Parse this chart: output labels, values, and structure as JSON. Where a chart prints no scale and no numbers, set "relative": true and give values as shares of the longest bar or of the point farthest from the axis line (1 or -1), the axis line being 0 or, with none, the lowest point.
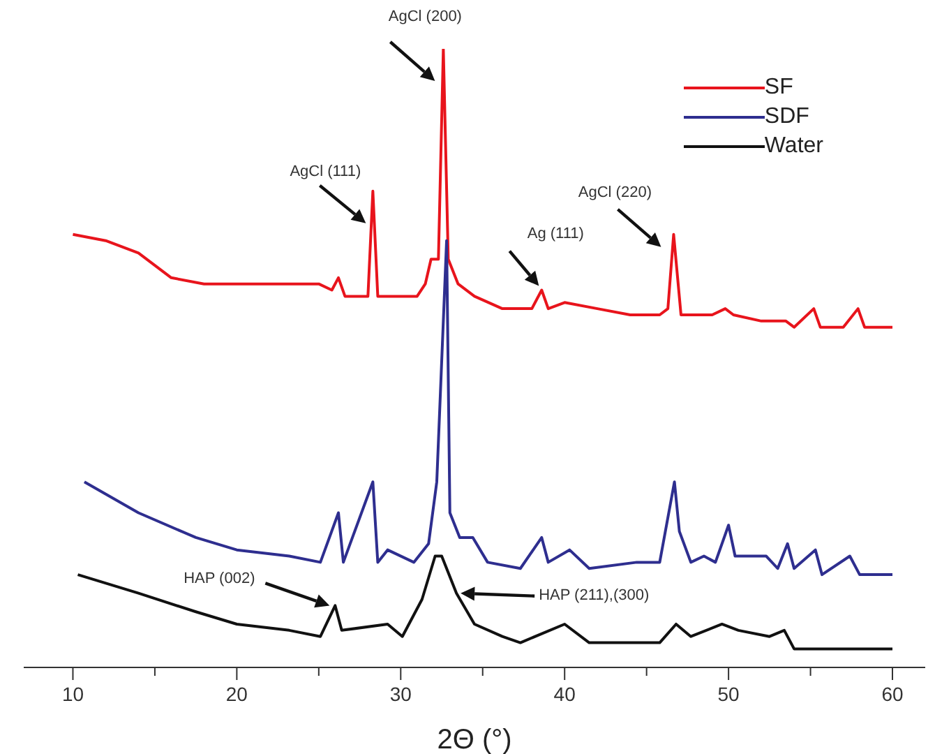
{
  "chart_data": {
    "type": "line",
    "relative": true,
    "xlabel": "2Θ (°)",
    "xlim": [
      7,
      62
    ],
    "xticks": [
      10,
      {
        "value": 15,
        "label": null
      },
      20,
      {
        "value": 25,
        "label": null
      },
      30,
      {
        "value": 35,
        "label": null
      },
      40,
      {
        "value": 45,
        "label": null
      },
      50,
      {
        "value": 55,
        "label": null
      },
      60
    ],
    "grid": false,
    "legend": "top right",
    "marker": "none",
    "line_style": "solid",
    "series": [
      {
        "name": "SF",
        "color": "#e8141c",
        "x": [
          10,
          12,
          14,
          16,
          18,
          20,
          23.2,
          25,
          25.8,
          26.2,
          26.6,
          27.5,
          28,
          28.3,
          28.6,
          30,
          31,
          31.5,
          31.85,
          32.3,
          32.6,
          32.9,
          33.5,
          34.5,
          36.2,
          38,
          38.6,
          39,
          40,
          42,
          44,
          45.8,
          46.3,
          46.65,
          47.1,
          49,
          49.8,
          50.3,
          52,
          53.5,
          54,
          55.2,
          55.6,
          57,
          57.9,
          58.3,
          60
        ],
        "values": [
          0.7,
          0.69,
          0.67,
          0.63,
          0.62,
          0.62,
          0.62,
          0.62,
          0.61,
          0.63,
          0.6,
          0.6,
          0.6,
          0.77,
          0.6,
          0.6,
          0.6,
          0.62,
          0.66,
          0.66,
          1.0,
          0.66,
          0.62,
          0.6,
          0.58,
          0.58,
          0.61,
          0.58,
          0.59,
          0.58,
          0.57,
          0.57,
          0.58,
          0.7,
          0.57,
          0.57,
          0.58,
          0.57,
          0.56,
          0.56,
          0.55,
          0.58,
          0.55,
          0.55,
          0.58,
          0.55,
          0.55
        ]
      },
      {
        "name": "SDF",
        "color": "#2e2e8f",
        "x": [
          10.7,
          14,
          17.5,
          20,
          23.2,
          25.1,
          26.2,
          26.5,
          28.3,
          28.6,
          29.2,
          30.8,
          31.7,
          32.2,
          32.8,
          33.0,
          33.6,
          34.4,
          35.3,
          37.3,
          38.6,
          39,
          40.3,
          41.5,
          44.4,
          45.8,
          46.7,
          47.0,
          47.7,
          48.5,
          49.2,
          50,
          50.4,
          51.5,
          52.3,
          53,
          53.6,
          54,
          55.3,
          55.7,
          57.4,
          58,
          60
        ],
        "values": [
          0.3,
          0.25,
          0.21,
          0.19,
          0.18,
          0.17,
          0.25,
          0.17,
          0.3,
          0.17,
          0.19,
          0.17,
          0.2,
          0.3,
          0.69,
          0.25,
          0.21,
          0.21,
          0.17,
          0.16,
          0.21,
          0.17,
          0.19,
          0.16,
          0.17,
          0.17,
          0.3,
          0.22,
          0.17,
          0.18,
          0.17,
          0.23,
          0.18,
          0.18,
          0.18,
          0.16,
          0.2,
          0.16,
          0.19,
          0.15,
          0.18,
          0.15,
          0.15
        ]
      },
      {
        "name": "Water",
        "color": "#111111",
        "x": [
          10.3,
          14,
          17.5,
          20,
          23.2,
          25.1,
          26,
          26.4,
          29.2,
          30.1,
          31.3,
          32.1,
          32.5,
          33.4,
          34.5,
          36.2,
          37.3,
          40,
          41.5,
          45.8,
          46.8,
          47.7,
          49.6,
          50.6,
          52.5,
          53.4,
          54,
          57,
          60
        ],
        "values": [
          0.15,
          0.12,
          0.09,
          0.07,
          0.06,
          0.05,
          0.1,
          0.06,
          0.07,
          0.05,
          0.11,
          0.18,
          0.18,
          0.12,
          0.07,
          0.05,
          0.04,
          0.07,
          0.04,
          0.04,
          0.07,
          0.05,
          0.07,
          0.06,
          0.05,
          0.06,
          0.03,
          0.03,
          0.03
        ]
      }
    ],
    "annotations": [
      {
        "text": "AgCl (111)",
        "x": 28.3,
        "y": 0.77
      },
      {
        "text": "AgCl (200)",
        "x": 32.6,
        "y": 1.0
      },
      "Ag (111)",
      {
        "text": "AgCl (220)",
        "x": 46.65,
        "y": 0.7
      },
      "HAP (002)",
      "HAP (211),(300)"
    ]
  }
}
